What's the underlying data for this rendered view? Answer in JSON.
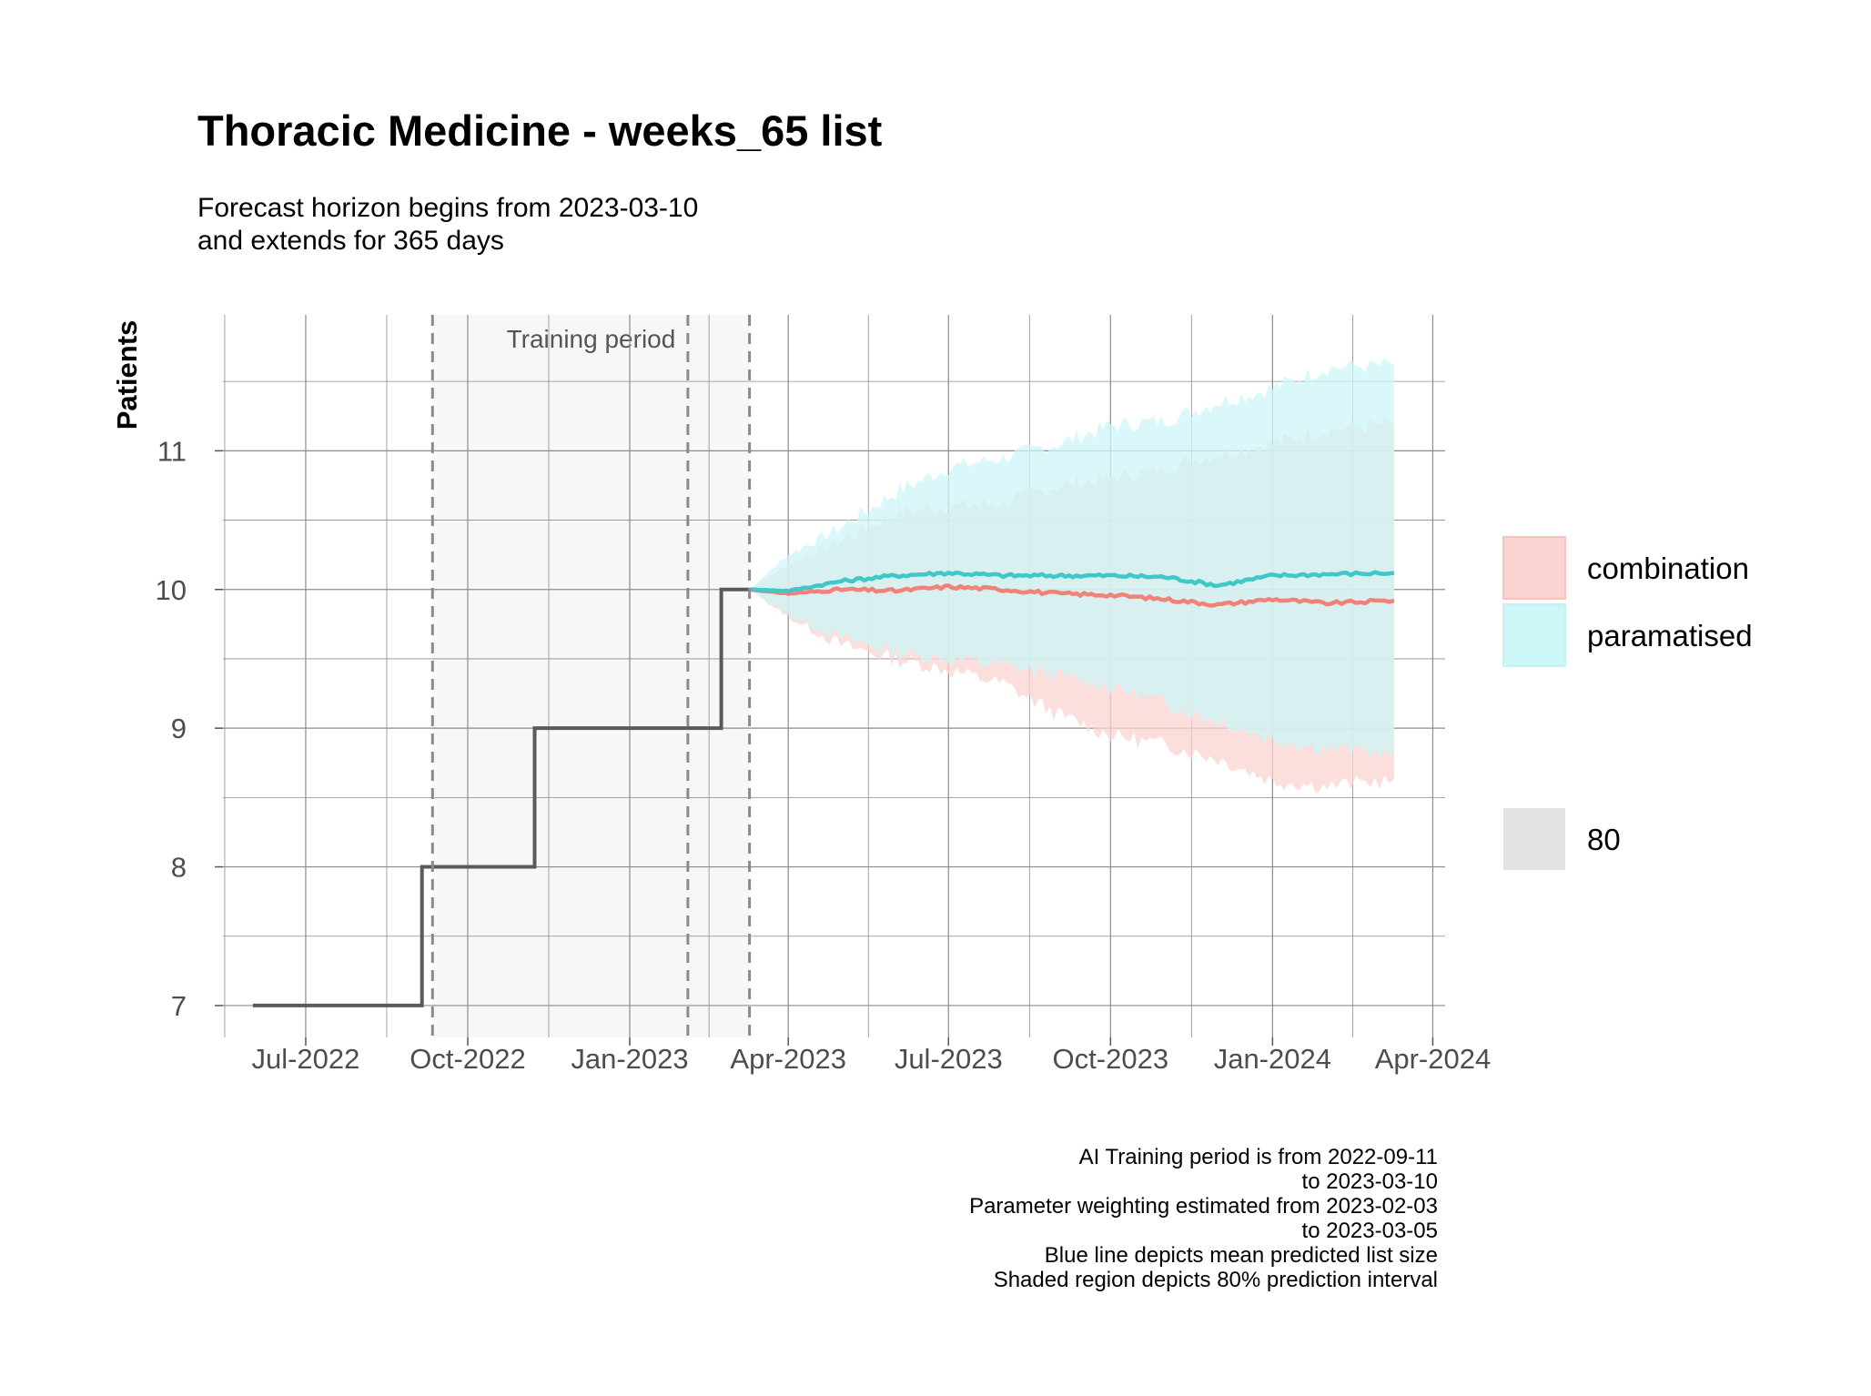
{
  "chart_data": {
    "type": "line",
    "title": "Thoracic Medicine - weeks_65 list",
    "subtitle": [
      "Forecast horizon begins from 2023-03-10",
      "and extends for 365 days"
    ],
    "xlabel": "",
    "ylabel": "Patients",
    "x_ticks": [
      "Jul-2022",
      "Oct-2022",
      "Jan-2023",
      "Apr-2023",
      "Jul-2023",
      "Oct-2023",
      "Jan-2024",
      "Apr-2024"
    ],
    "x_tick_dates": [
      "2022-07-01",
      "2022-10-01",
      "2023-01-01",
      "2023-04-01",
      "2023-07-01",
      "2023-10-01",
      "2024-01-01",
      "2024-04-01"
    ],
    "xlim": [
      "2022-05-15",
      "2024-04-08"
    ],
    "y_ticks": [
      7,
      8,
      9,
      10,
      11
    ],
    "ylim": [
      6.77,
      11.98
    ],
    "grid": true,
    "training_band": {
      "label": "Training period",
      "from": "2022-09-11",
      "to": "2023-03-10"
    },
    "vlines": [
      "2022-09-11",
      "2023-02-03",
      "2023-03-10"
    ],
    "observed": {
      "color": "#5a5a5a",
      "points": [
        [
          "2022-06-01",
          7
        ],
        [
          "2022-09-05",
          7
        ],
        [
          "2022-09-05",
          8
        ],
        [
          "2022-11-08",
          8
        ],
        [
          "2022-11-08",
          9
        ],
        [
          "2023-02-22",
          9
        ],
        [
          "2023-02-22",
          10
        ],
        [
          "2023-03-10",
          10
        ]
      ]
    },
    "series": [
      {
        "name": "combination",
        "line_color": "#f0827a",
        "fill_color": "#fbd3d0",
        "mean": [
          [
            "2023-03-10",
            10.0
          ],
          [
            "2023-04-01",
            9.97
          ],
          [
            "2023-05-01",
            10.0
          ],
          [
            "2023-06-01",
            9.99
          ],
          [
            "2023-07-01",
            10.02
          ],
          [
            "2023-08-01",
            10.0
          ],
          [
            "2023-09-01",
            9.97
          ],
          [
            "2023-10-01",
            9.96
          ],
          [
            "2023-11-01",
            9.93
          ],
          [
            "2023-12-01",
            9.89
          ],
          [
            "2024-01-01",
            9.93
          ],
          [
            "2024-02-01",
            9.9
          ],
          [
            "2024-03-10",
            9.92
          ]
        ],
        "lower": [
          [
            "2023-03-10",
            10.0
          ],
          [
            "2023-04-01",
            9.8
          ],
          [
            "2023-05-01",
            9.6
          ],
          [
            "2023-06-01",
            9.5
          ],
          [
            "2023-07-01",
            9.42
          ],
          [
            "2023-08-01",
            9.32
          ],
          [
            "2023-09-01",
            9.1
          ],
          [
            "2023-10-01",
            8.95
          ],
          [
            "2023-11-01",
            8.88
          ],
          [
            "2023-12-01",
            8.78
          ],
          [
            "2024-01-01",
            8.62
          ],
          [
            "2024-02-01",
            8.58
          ],
          [
            "2024-03-10",
            8.63
          ]
        ],
        "upper": [
          [
            "2023-03-10",
            10.0
          ],
          [
            "2023-04-01",
            10.18
          ],
          [
            "2023-05-01",
            10.35
          ],
          [
            "2023-06-01",
            10.55
          ],
          [
            "2023-07-01",
            10.6
          ],
          [
            "2023-08-01",
            10.62
          ],
          [
            "2023-09-01",
            10.75
          ],
          [
            "2023-10-01",
            10.8
          ],
          [
            "2023-11-01",
            10.88
          ],
          [
            "2023-12-01",
            10.98
          ],
          [
            "2024-01-01",
            11.05
          ],
          [
            "2024-02-01",
            11.15
          ],
          [
            "2024-03-10",
            11.2
          ]
        ]
      },
      {
        "name": "paramatised",
        "line_color": "#3ec8c8",
        "fill_color": "#cdf6f8",
        "mean": [
          [
            "2023-03-10",
            10.0
          ],
          [
            "2023-04-01",
            9.99
          ],
          [
            "2023-05-01",
            10.06
          ],
          [
            "2023-06-01",
            10.1
          ],
          [
            "2023-07-01",
            10.12
          ],
          [
            "2023-08-01",
            10.1
          ],
          [
            "2023-09-01",
            10.1
          ],
          [
            "2023-10-01",
            10.1
          ],
          [
            "2023-11-01",
            10.09
          ],
          [
            "2023-12-01",
            10.03
          ],
          [
            "2024-01-01",
            10.1
          ],
          [
            "2024-02-01",
            10.11
          ],
          [
            "2024-03-10",
            10.12
          ]
        ],
        "lower": [
          [
            "2023-03-10",
            10.0
          ],
          [
            "2023-04-01",
            9.82
          ],
          [
            "2023-05-01",
            9.65
          ],
          [
            "2023-06-01",
            9.55
          ],
          [
            "2023-07-01",
            9.5
          ],
          [
            "2023-08-01",
            9.45
          ],
          [
            "2023-09-01",
            9.38
          ],
          [
            "2023-10-01",
            9.3
          ],
          [
            "2023-11-01",
            9.18
          ],
          [
            "2023-12-01",
            9.05
          ],
          [
            "2024-01-01",
            8.92
          ],
          [
            "2024-02-01",
            8.85
          ],
          [
            "2024-03-10",
            8.82
          ]
        ],
        "upper": [
          [
            "2023-03-10",
            10.0
          ],
          [
            "2023-04-01",
            10.25
          ],
          [
            "2023-05-01",
            10.45
          ],
          [
            "2023-06-01",
            10.7
          ],
          [
            "2023-07-01",
            10.88
          ],
          [
            "2023-08-01",
            10.95
          ],
          [
            "2023-09-01",
            11.05
          ],
          [
            "2023-10-01",
            11.18
          ],
          [
            "2023-11-01",
            11.22
          ],
          [
            "2023-12-01",
            11.35
          ],
          [
            "2024-01-01",
            11.45
          ],
          [
            "2024-02-01",
            11.6
          ],
          [
            "2024-03-10",
            11.62
          ]
        ]
      }
    ],
    "overlap_fill_color": "#d6f1f1",
    "legend": {
      "position": "right",
      "entries": [
        {
          "label": "combination",
          "color": "#fbd3d0"
        },
        {
          "label": "paramatised",
          "color": "#cdf6f8"
        }
      ],
      "level_entry": {
        "label": "80",
        "color": "#e3e3e3"
      }
    },
    "caption": [
      "AI Training period is from 2022-09-11",
      "to 2023-03-10",
      "Parameter weighting estimated from 2023-02-03",
      "to 2023-03-05",
      "Blue line depicts mean predicted list size",
      "Shaded region depicts 80% prediction interval"
    ]
  }
}
